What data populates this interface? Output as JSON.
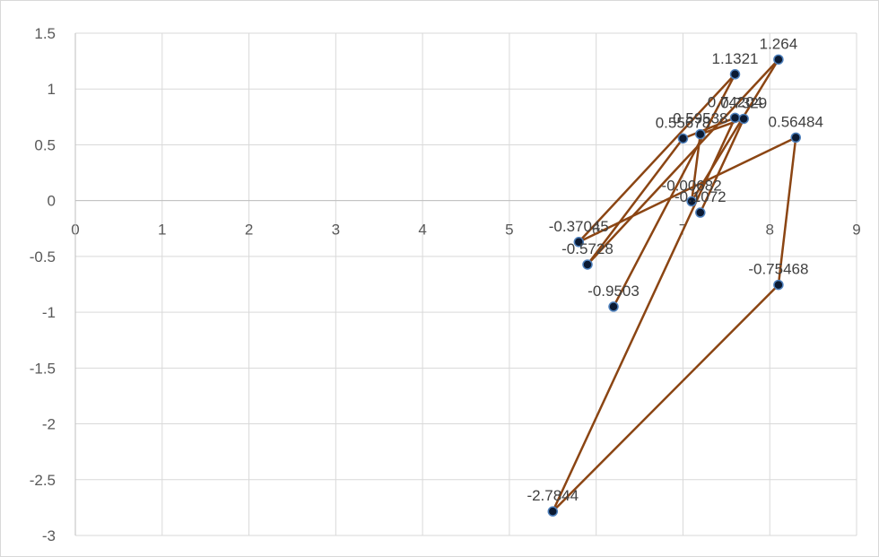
{
  "chart_data": {
    "type": "scatter",
    "title": "",
    "xlabel": "",
    "ylabel": "",
    "xlim": [
      0,
      9
    ],
    "ylim": [
      -3,
      1.5
    ],
    "x_ticks": [
      "0",
      "1",
      "2",
      "3",
      "4",
      "5",
      "6",
      "7",
      "8",
      "9"
    ],
    "y_ticks": [
      "1.5",
      "1",
      "0.5",
      "0",
      "-0.5",
      "-1",
      "-1.5",
      "-2",
      "-2.5",
      "-3"
    ],
    "grid": true,
    "legend": "none",
    "line_color": "#8B4513",
    "marker_color": "#0b1a33",
    "marker_edge": "#4f81bd",
    "series": [
      {
        "points": [
          {
            "x": 6.2,
            "y": -0.9503,
            "label": "-0.9503"
          },
          {
            "x": 7.6,
            "y": 1.1321,
            "label": "1.1321"
          },
          {
            "x": 5.8,
            "y": -0.37045,
            "label": "-0.37045"
          },
          {
            "x": 8.3,
            "y": 0.56484,
            "label": "0.56484"
          },
          {
            "x": 8.1,
            "y": -0.75468,
            "label": "-0.75468"
          },
          {
            "x": 5.5,
            "y": -2.7844,
            "label": "-2.7844"
          },
          {
            "x": 7.6,
            "y": 0.74204,
            "label": "0.74204"
          },
          {
            "x": 7.0,
            "y": 0.55678,
            "label": "0.55678"
          },
          {
            "x": 5.9,
            "y": -0.5728,
            "label": "-0.5728"
          },
          {
            "x": 8.1,
            "y": 1.264,
            "label": "1.264"
          },
          {
            "x": 7.1,
            "y": -0.00682,
            "label": "-0.00682"
          },
          {
            "x": 7.2,
            "y": 0.59538,
            "label": "0.59538"
          },
          {
            "x": 7.7,
            "y": 0.7329,
            "label": "0.7329"
          },
          {
            "x": 7.2,
            "y": -0.1072,
            "label": "-0.1072"
          }
        ]
      }
    ]
  }
}
